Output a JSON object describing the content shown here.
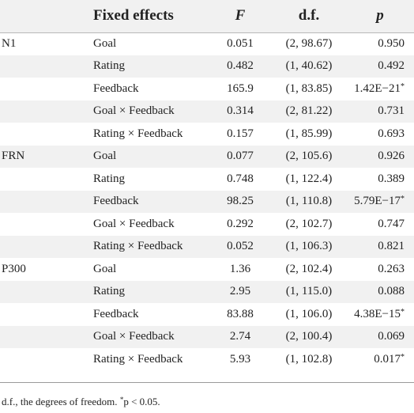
{
  "table": {
    "headers": {
      "group": "",
      "fixed_effects": "Fixed effects",
      "f": "F",
      "df": "d.f.",
      "p": "p"
    },
    "rows": [
      {
        "group": "N1",
        "effect": "Goal",
        "f": "0.051",
        "df": "(2, 98.67)",
        "p": "0.950",
        "sig": ""
      },
      {
        "group": "",
        "effect": "Rating",
        "f": "0.482",
        "df": "(1, 40.62)",
        "p": "0.492",
        "sig": ""
      },
      {
        "group": "",
        "effect": "Feedback",
        "f": "165.9",
        "df": "(1, 83.85)",
        "p": "1.42E−21",
        "sig": "*"
      },
      {
        "group": "",
        "effect": "Goal × Feedback",
        "f": "0.314",
        "df": "(2, 81.22)",
        "p": "0.731",
        "sig": ""
      },
      {
        "group": "",
        "effect": "Rating × Feedback",
        "f": "0.157",
        "df": "(1, 85.99)",
        "p": "0.693",
        "sig": ""
      },
      {
        "group": "FRN",
        "effect": "Goal",
        "f": "0.077",
        "df": "(2, 105.6)",
        "p": "0.926",
        "sig": ""
      },
      {
        "group": "",
        "effect": "Rating",
        "f": "0.748",
        "df": "(1, 122.4)",
        "p": "0.389",
        "sig": ""
      },
      {
        "group": "",
        "effect": "Feedback",
        "f": "98.25",
        "df": "(1, 110.8)",
        "p": "5.79E−17",
        "sig": "*"
      },
      {
        "group": "",
        "effect": "Goal × Feedback",
        "f": "0.292",
        "df": "(2, 102.7)",
        "p": "0.747",
        "sig": ""
      },
      {
        "group": "",
        "effect": "Rating × Feedback",
        "f": "0.052",
        "df": "(1, 106.3)",
        "p": "0.821",
        "sig": ""
      },
      {
        "group": "P300",
        "effect": "Goal",
        "f": "1.36",
        "df": "(2, 102.4)",
        "p": "0.263",
        "sig": ""
      },
      {
        "group": "",
        "effect": "Rating",
        "f": "2.95",
        "df": "(1, 115.0)",
        "p": "0.088",
        "sig": ""
      },
      {
        "group": "",
        "effect": "Feedback",
        "f": "83.88",
        "df": "(1, 106.0)",
        "p": "4.38E−15",
        "sig": "*"
      },
      {
        "group": "",
        "effect": "Goal × Feedback",
        "f": "2.74",
        "df": "(2, 100.4)",
        "p": "0.069",
        "sig": ""
      },
      {
        "group": "",
        "effect": "Rating × Feedback",
        "f": "5.93",
        "df": "(1, 102.8)",
        "p": "0.017",
        "sig": "*"
      }
    ]
  },
  "footnote": {
    "text_before": "d.f., the degrees of freedom. ",
    "marker": "*",
    "text_after": "p < 0.05."
  },
  "colors": {
    "header_band": "#f1f1f1",
    "alt_row_band": "#f1f1f1",
    "text": "#222222"
  }
}
